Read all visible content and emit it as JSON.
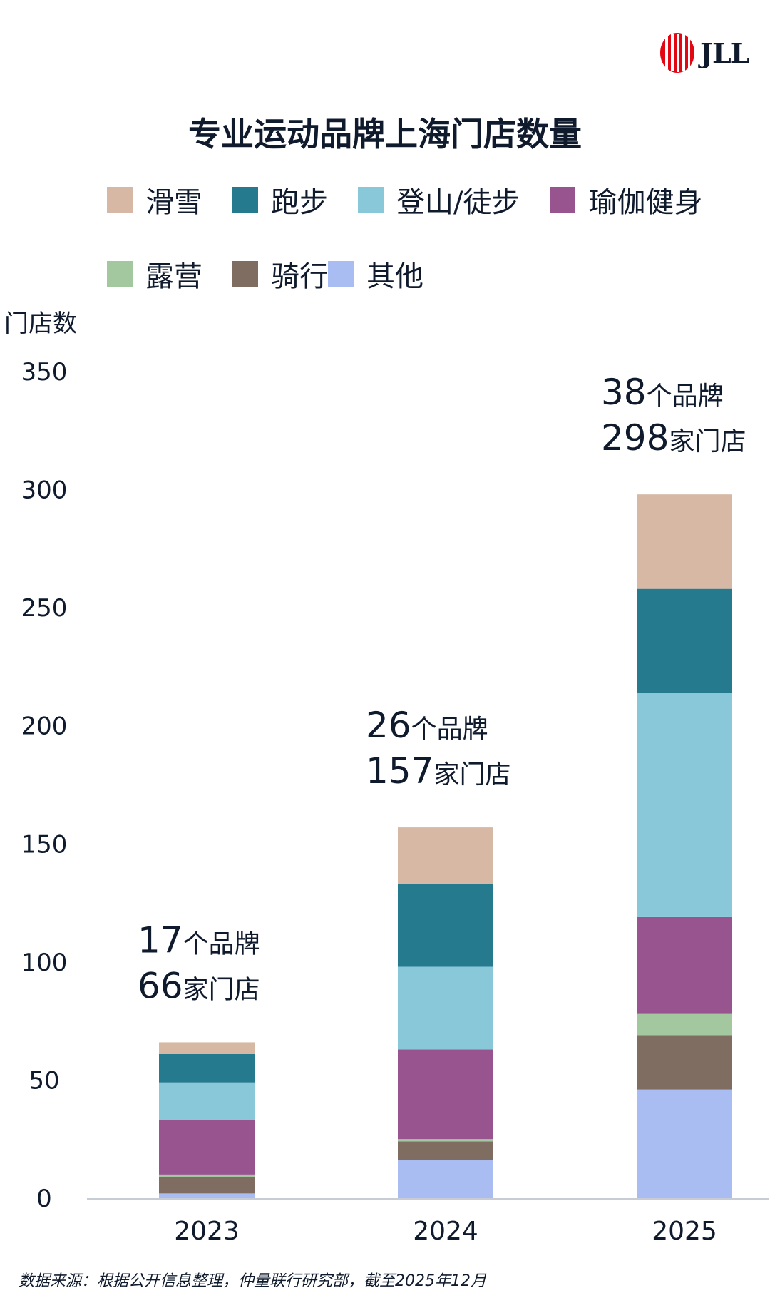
{
  "logo": {
    "text": "JLL"
  },
  "title": "专业运动品牌上海门店数量",
  "legend": [
    {
      "label": "滑雪",
      "color": "#d6b8a4"
    },
    {
      "label": "跑步",
      "color": "#257a8e"
    },
    {
      "label": "登山/徒步",
      "color": "#88c8d8"
    },
    {
      "label": "瑜伽健身",
      "color": "#97548f"
    },
    {
      "label": "露营",
      "color": "#a3c8a0"
    },
    {
      "label": "骑行",
      "color": "#7f6d61"
    },
    {
      "label": "其他",
      "color": "#a9bdf3"
    }
  ],
  "source": "数据来源：根据公开信息整理，仲量联行研究部，截至2025年12月",
  "chart_data": {
    "type": "bar",
    "stacked": true,
    "ylabel": "门店数",
    "xlabel": "",
    "ylim": [
      0,
      350
    ],
    "yticks": [
      0,
      50,
      100,
      150,
      200,
      250,
      300,
      350
    ],
    "grid": false,
    "legend_position": "top",
    "categories": [
      "2023",
      "2024",
      "2025"
    ],
    "series": [
      {
        "name": "其他",
        "values": [
          2,
          16,
          46
        ],
        "color": "#a9bdf3"
      },
      {
        "name": "骑行",
        "values": [
          7,
          8,
          23
        ],
        "color": "#7f6d61"
      },
      {
        "name": "露营",
        "values": [
          1,
          1,
          9
        ],
        "color": "#a3c8a0"
      },
      {
        "name": "瑜伽健身",
        "values": [
          23,
          38,
          41
        ],
        "color": "#97548f"
      },
      {
        "name": "登山/徒步",
        "values": [
          16,
          35,
          95
        ],
        "color": "#88c8d8"
      },
      {
        "name": "跑步",
        "values": [
          12,
          35,
          44
        ],
        "color": "#257a8e"
      },
      {
        "name": "滑雪",
        "values": [
          5,
          24,
          40
        ],
        "color": "#d6b8a4"
      }
    ],
    "totals": [
      66,
      157,
      298
    ],
    "annotations": [
      {
        "brands_num": "17",
        "brands_unit": "个品牌",
        "stores_num": "66",
        "stores_unit": "家门店"
      },
      {
        "brands_num": "26",
        "brands_unit": "个品牌",
        "stores_num": "157",
        "stores_unit": "家门店"
      },
      {
        "brands_num": "38",
        "brands_unit": "个品牌",
        "stores_num": "298",
        "stores_unit": "家门店"
      }
    ]
  }
}
